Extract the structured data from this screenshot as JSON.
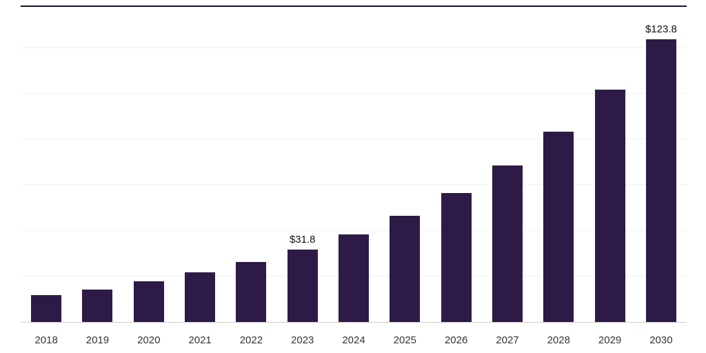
{
  "chart_data": {
    "type": "bar",
    "title": "",
    "xlabel": "",
    "ylabel": "",
    "categories": [
      "2018",
      "2019",
      "2020",
      "2021",
      "2022",
      "2023",
      "2024",
      "2025",
      "2026",
      "2027",
      "2028",
      "2029",
      "2030"
    ],
    "values": [
      11.8,
      14.3,
      17.7,
      21.6,
      26.2,
      31.8,
      38.4,
      46.6,
      56.5,
      68.7,
      83.3,
      101.7,
      123.8
    ],
    "data_labels": {
      "2023": "$31.8",
      "2030": "$123.8"
    },
    "ylim": [
      0,
      138
    ],
    "gridline_step": 20,
    "grid": true,
    "legend": "none",
    "bar_color": "#2e1a47",
    "grid_color": "#f0f0f0",
    "axis_line_color": "#cccccc",
    "top_border_color": "#17112b",
    "data_label_color": "#111111",
    "tick_label_color": "#333333",
    "background_color": "#ffffff"
  }
}
